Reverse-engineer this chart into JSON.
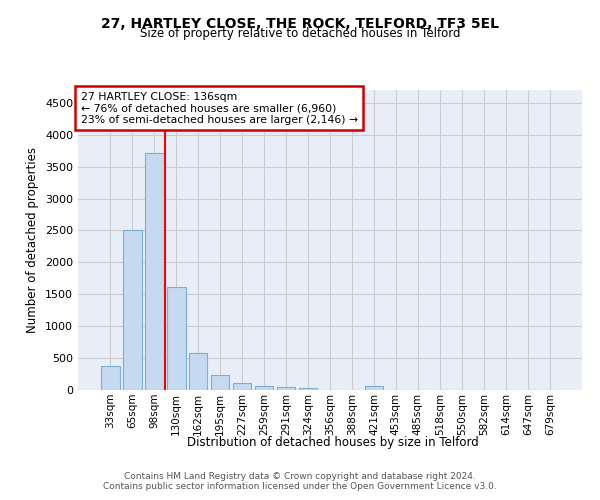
{
  "title1": "27, HARTLEY CLOSE, THE ROCK, TELFORD, TF3 5EL",
  "title2": "Size of property relative to detached houses in Telford",
  "xlabel": "Distribution of detached houses by size in Telford",
  "ylabel": "Number of detached properties",
  "categories": [
    "33sqm",
    "65sqm",
    "98sqm",
    "130sqm",
    "162sqm",
    "195sqm",
    "227sqm",
    "259sqm",
    "291sqm",
    "324sqm",
    "356sqm",
    "388sqm",
    "421sqm",
    "453sqm",
    "485sqm",
    "518sqm",
    "550sqm",
    "582sqm",
    "614sqm",
    "647sqm",
    "679sqm"
  ],
  "values": [
    370,
    2500,
    3720,
    1620,
    580,
    230,
    110,
    70,
    45,
    35,
    0,
    0,
    60,
    0,
    0,
    0,
    0,
    0,
    0,
    0,
    0
  ],
  "bar_color": "#c5d9f0",
  "bar_edge_color": "#7bafd4",
  "property_line_label": "27 HARTLEY CLOSE: 136sqm",
  "annotation_line1": "← 76% of detached houses are smaller (6,960)",
  "annotation_line2": "23% of semi-detached houses are larger (2,146) →",
  "annotation_box_color": "#cc0000",
  "ylim": [
    0,
    4700
  ],
  "yticks": [
    0,
    500,
    1000,
    1500,
    2000,
    2500,
    3000,
    3500,
    4000,
    4500
  ],
  "grid_color": "#cccccc",
  "bg_color": "#e8eef7",
  "footer1": "Contains HM Land Registry data © Crown copyright and database right 2024.",
  "footer2": "Contains public sector information licensed under the Open Government Licence v3.0."
}
